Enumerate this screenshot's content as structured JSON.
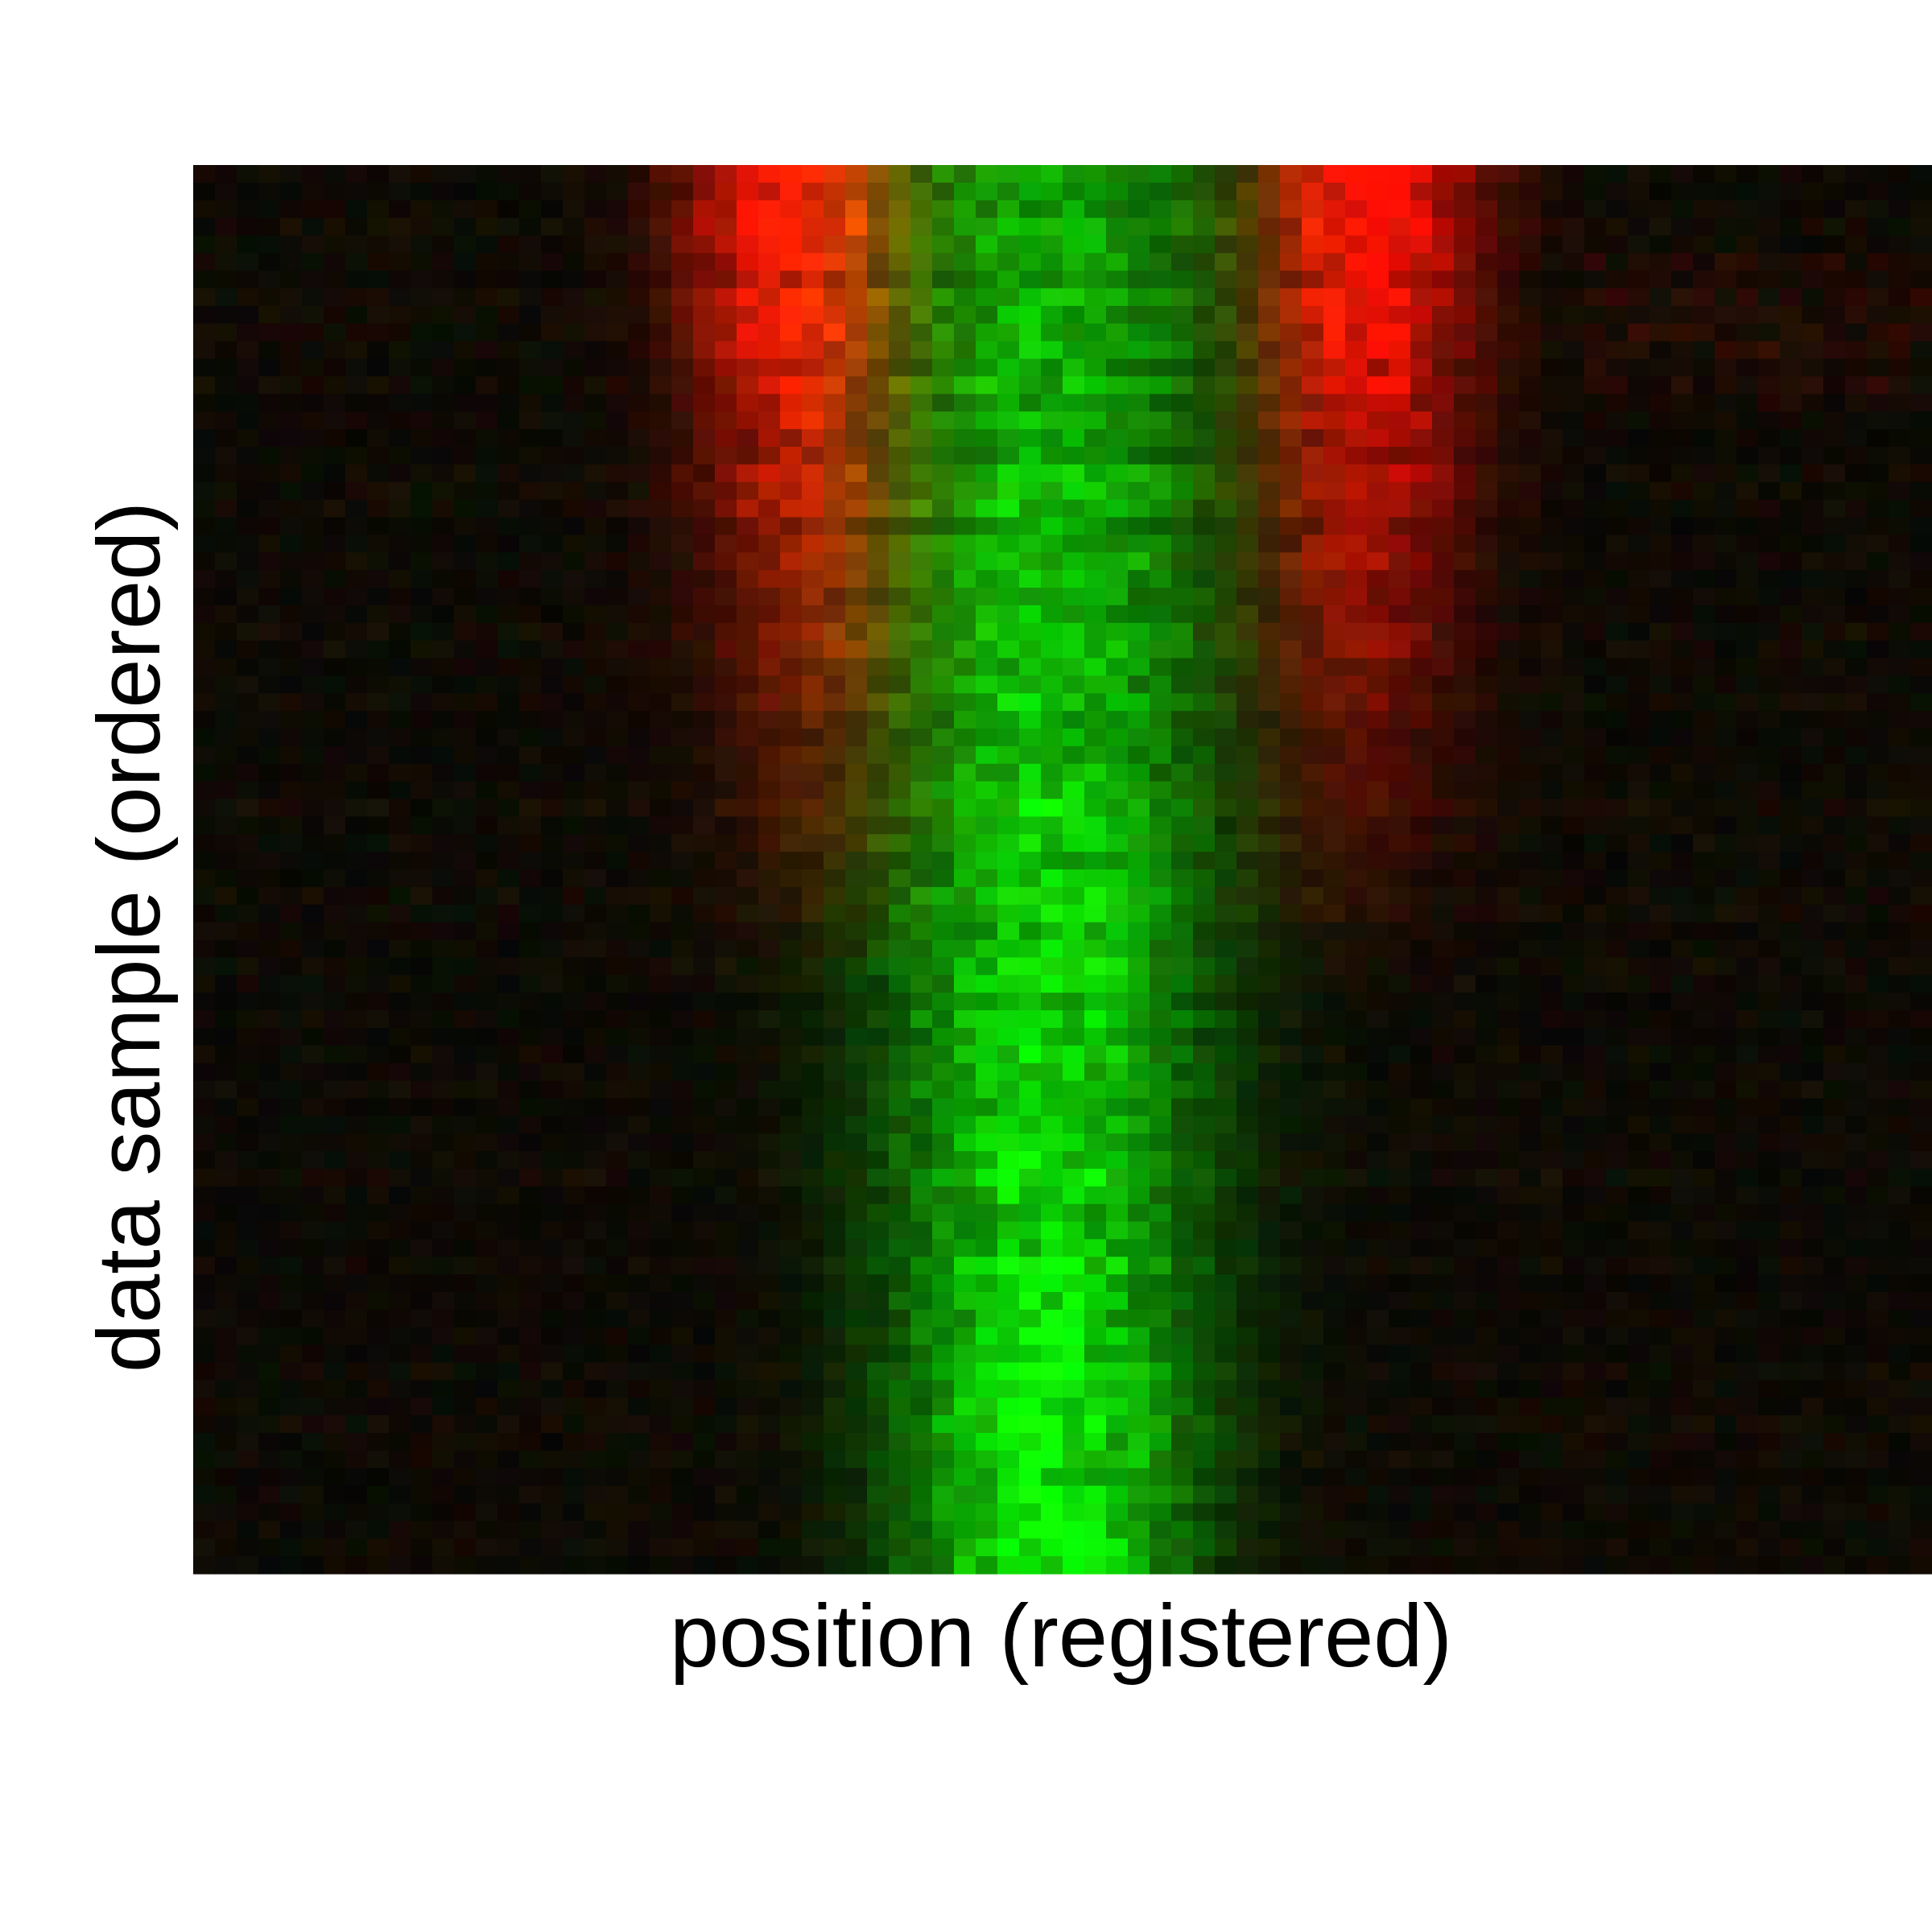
{
  "chart_data": {
    "type": "heatmap",
    "title": "",
    "xlabel": "position (registered)",
    "ylabel": "data sample (ordered)",
    "n_columns": 80,
    "n_rows": 80,
    "color_channels": {
      "red": "red-channel intensity",
      "green": "green-channel intensity"
    },
    "colors": {
      "red_channel": "#ff2a00",
      "green_channel": "#1aff00",
      "background": "#0a0a02"
    },
    "axis_ticks": false,
    "grid": false,
    "legend": "none"
  }
}
